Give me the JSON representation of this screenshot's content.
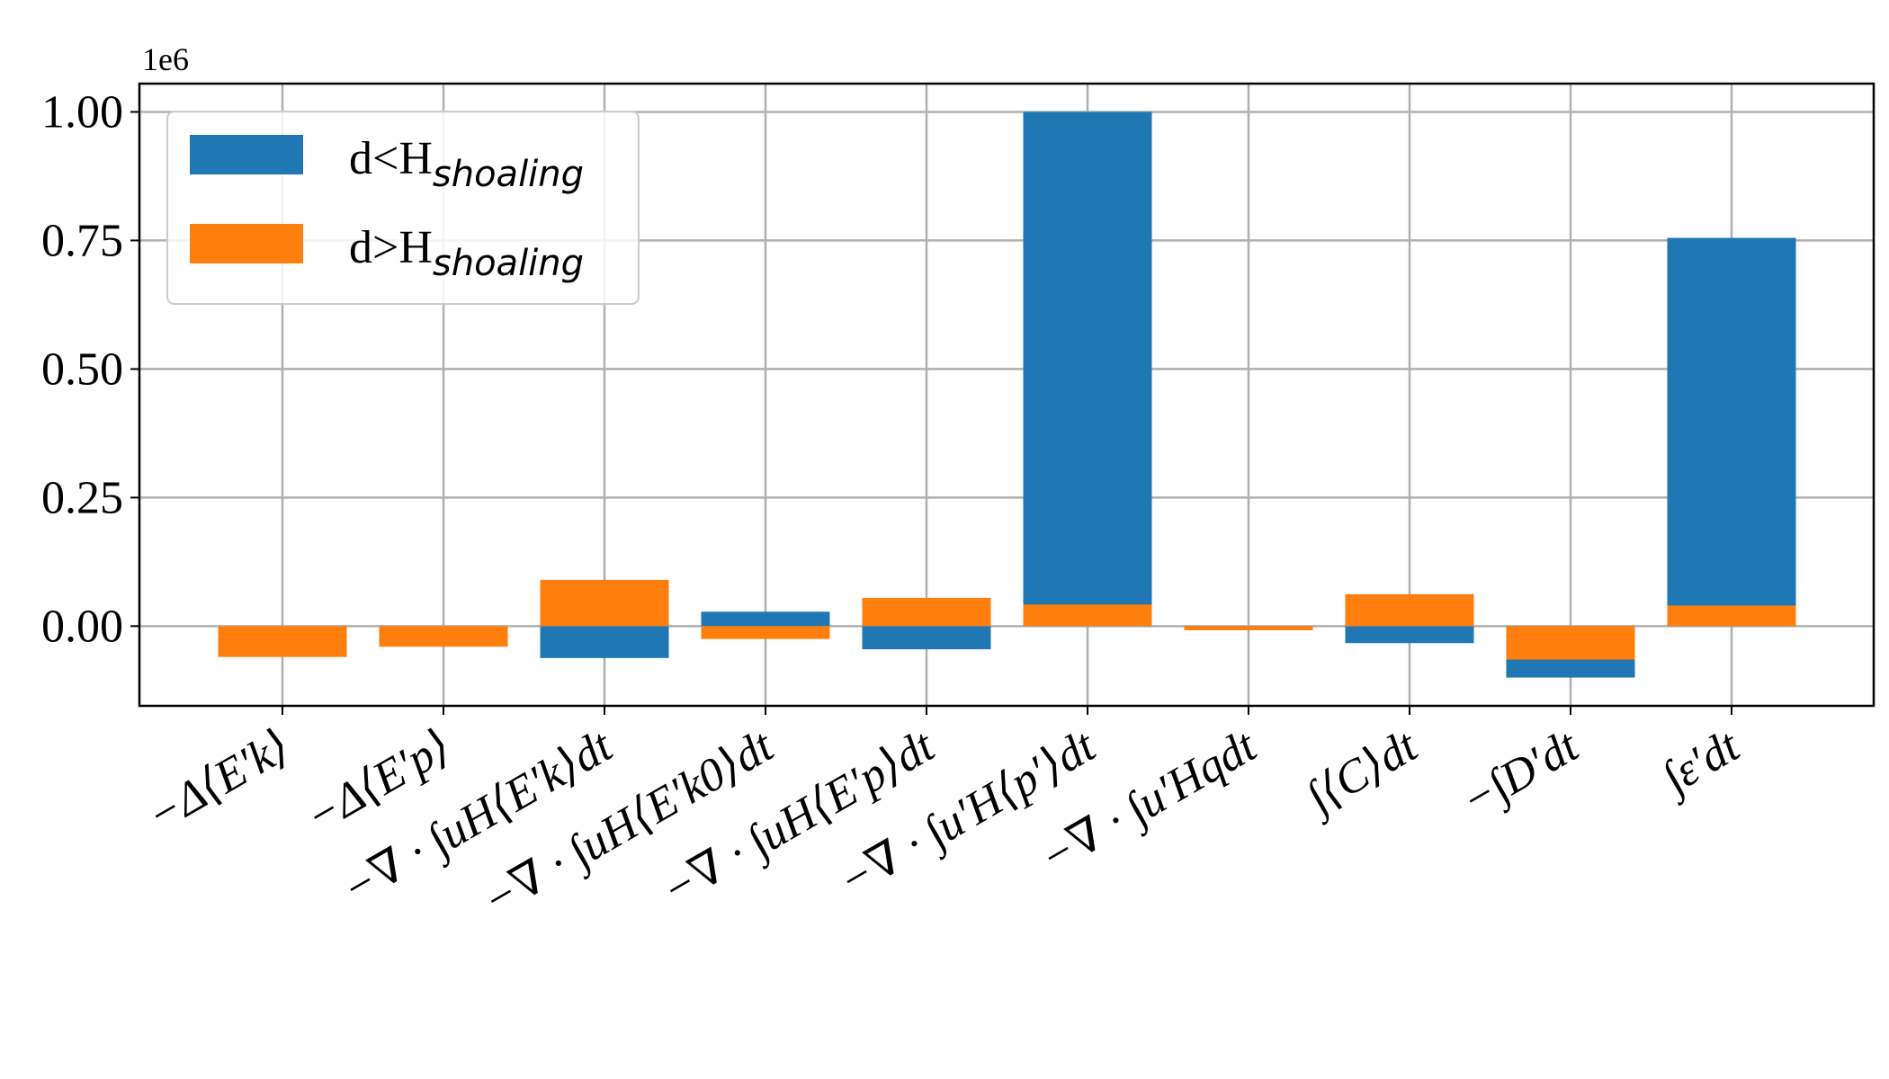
{
  "chart_data": {
    "type": "bar",
    "offset_label": "1e6",
    "categories": [
      "−Δ⟨E′k⟩",
      "−Δ⟨E′p⟩",
      "−∇ · ∫uH⟨E′k⟩dt",
      "−∇ · ∫uH⟨E′k0⟩dt",
      "−∇ · ∫uH⟨E′p⟩dt",
      "−∇ · ∫u′H⟨p′⟩dt",
      "−∇ · ∫u′Hqdt",
      "∫⟨C⟩dt",
      "−∫D′dt",
      "∫ε′dt"
    ],
    "series": [
      {
        "name": "d<H",
        "name_sub": "shoaling",
        "color": "#1f77b4",
        "values": [
          0.0,
          0.0,
          -0.062,
          0.028,
          -0.045,
          1.0,
          -0.002,
          -0.033,
          -0.1,
          0.755
        ]
      },
      {
        "name": "d>H",
        "name_sub": "shoaling",
        "color": "#ff7f0e",
        "values": [
          -0.06,
          -0.04,
          0.09,
          -0.025,
          0.055,
          0.042,
          -0.008,
          0.062,
          -0.065,
          0.04
        ]
      }
    ],
    "ylim": [
      -0.155,
      1.055
    ],
    "yticks": [
      "1.00",
      "0.75",
      "0.50",
      "0.25",
      "0.00"
    ],
    "ytick_values": [
      1.0,
      0.75,
      0.5,
      0.25,
      0.0
    ],
    "grid": true,
    "legend_position": "top-left"
  }
}
